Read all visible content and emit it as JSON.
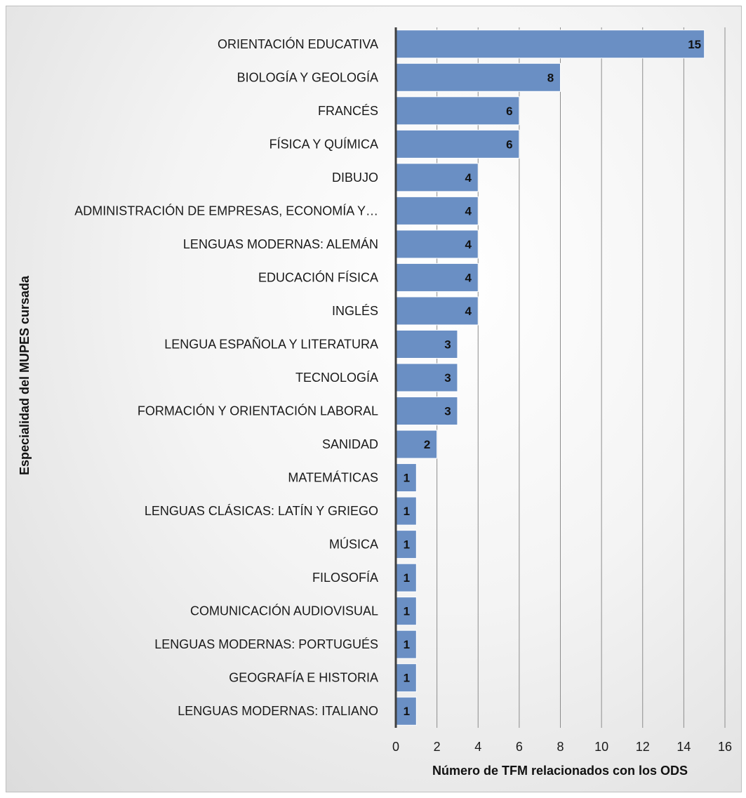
{
  "chart_data": {
    "type": "bar",
    "orientation": "horizontal",
    "categories": [
      "ORIENTACIÓN EDUCATIVA",
      "BIOLOGÍA Y GEOLOGÍA",
      "FRANCÉS",
      "FÍSICA Y QUÍMICA",
      "DIBUJO",
      "ADMINISTRACIÓN DE EMPRESAS, ECONOMÍA Y…",
      "LENGUAS MODERNAS: ALEMÁN",
      "EDUCACIÓN FÍSICA",
      "INGLÉS",
      "LENGUA ESPAÑOLA Y LITERATURA",
      "TECNOLOGÍA",
      "FORMACIÓN Y ORIENTACIÓN LABORAL",
      "SANIDAD",
      "MATEMÁTICAS",
      "LENGUAS CLÁSICAS: LATÍN Y GRIEGO",
      "MÚSICA",
      "FILOSOFÍA",
      "COMUNICACIÓN AUDIOVISUAL",
      "LENGUAS MODERNAS: PORTUGUÉS",
      "GEOGRAFÍA E HISTORIA",
      "LENGUAS MODERNAS: ITALIANO"
    ],
    "values": [
      15,
      8,
      6,
      6,
      4,
      4,
      4,
      4,
      4,
      3,
      3,
      3,
      2,
      1,
      1,
      1,
      1,
      1,
      1,
      1,
      1
    ],
    "xlabel": "Número de TFM relacionados con los ODS",
    "ylabel": "Especialidad del MUPES cursada",
    "xlim": [
      0,
      16
    ],
    "xticks": [
      0,
      2,
      4,
      6,
      8,
      10,
      12,
      14,
      16
    ],
    "grid": "vertical",
    "legend": "none",
    "data_labels": true,
    "colors": {
      "bar_fill": "#6a8fc4",
      "bar_stroke": "#ffffff",
      "grid": "#8c8c8c",
      "axis": "#404040"
    }
  }
}
